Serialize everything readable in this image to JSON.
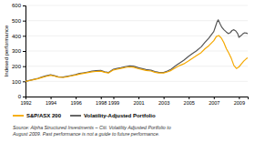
{
  "chart_data": {
    "type": "line",
    "ylabel": "Indexed performance",
    "xlim": [
      1992,
      2009.7
    ],
    "xticks": [
      1992,
      1994,
      1996,
      1998,
      1999,
      2001,
      2003,
      2005,
      2007,
      2009
    ],
    "ylim": [
      0,
      600
    ],
    "yticks": [
      0,
      100,
      200,
      300,
      400,
      500,
      600
    ],
    "grid": true,
    "legend": "bottom",
    "annotations": [
      "Source: Alpha Structured Investments – Citi. Volatility Adjusted Portfolio to\nAugust 2009. Past performance is not a guide to future performance."
    ],
    "series": [
      {
        "name": "S&P/ASX 200",
        "color": "#f5a800",
        "x": [
          1992.0,
          1992.3,
          1992.6,
          1993.0,
          1993.3,
          1993.6,
          1994.0,
          1994.3,
          1994.6,
          1995.0,
          1995.3,
          1995.6,
          1996.0,
          1996.3,
          1996.6,
          1997.0,
          1997.3,
          1997.6,
          1998.0,
          1998.3,
          1998.6,
          1999.0,
          1999.3,
          1999.6,
          2000.0,
          2000.3,
          2000.6,
          2001.0,
          2001.3,
          2001.6,
          2002.0,
          2002.3,
          2002.6,
          2003.0,
          2003.3,
          2003.6,
          2004.0,
          2004.3,
          2004.6,
          2005.0,
          2005.3,
          2005.6,
          2006.0,
          2006.3,
          2006.6,
          2007.0,
          2007.2,
          2007.4,
          2007.6,
          2007.8,
          2008.0,
          2008.2,
          2008.4,
          2008.6,
          2008.8,
          2009.0,
          2009.2,
          2009.4,
          2009.6,
          2009.7
        ],
        "values": [
          100,
          105,
          110,
          118,
          125,
          132,
          140,
          135,
          128,
          126,
          130,
          135,
          142,
          148,
          152,
          158,
          163,
          165,
          167,
          160,
          155,
          175,
          180,
          185,
          192,
          195,
          193,
          183,
          178,
          172,
          168,
          160,
          155,
          155,
          162,
          172,
          192,
          205,
          215,
          235,
          252,
          268,
          290,
          315,
          335,
          368,
          395,
          402,
          385,
          355,
          315,
          285,
          250,
          205,
          185,
          195,
          215,
          235,
          250,
          255
        ]
      },
      {
        "name": "Volatility-Adjusted Portfolio",
        "color": "#555555",
        "x": [
          1992.0,
          1992.3,
          1992.6,
          1993.0,
          1993.3,
          1993.6,
          1994.0,
          1994.3,
          1994.6,
          1995.0,
          1995.3,
          1995.6,
          1996.0,
          1996.3,
          1996.6,
          1997.0,
          1997.3,
          1997.6,
          1998.0,
          1998.3,
          1998.6,
          1999.0,
          1999.3,
          1999.6,
          2000.0,
          2000.3,
          2000.6,
          2001.0,
          2001.3,
          2001.6,
          2002.0,
          2002.3,
          2002.6,
          2003.0,
          2003.3,
          2003.6,
          2004.0,
          2004.3,
          2004.6,
          2005.0,
          2005.3,
          2005.6,
          2006.0,
          2006.3,
          2006.6,
          2007.0,
          2007.15,
          2007.25,
          2007.35,
          2007.5,
          2007.65,
          2007.8,
          2008.0,
          2008.15,
          2008.3,
          2008.45,
          2008.6,
          2008.75,
          2008.9,
          2009.0,
          2009.15,
          2009.3,
          2009.45,
          2009.6,
          2009.7
        ],
        "values": [
          100,
          106,
          112,
          120,
          128,
          136,
          143,
          137,
          130,
          128,
          133,
          138,
          145,
          152,
          156,
          162,
          167,
          170,
          172,
          163,
          158,
          180,
          185,
          190,
          198,
          202,
          200,
          190,
          184,
          178,
          173,
          165,
          160,
          158,
          168,
          180,
          205,
          222,
          238,
          265,
          283,
          300,
          328,
          358,
          385,
          428,
          465,
          490,
          505,
          478,
          455,
          440,
          425,
          415,
          420,
          435,
          440,
          432,
          415,
          390,
          400,
          412,
          420,
          418,
          415
        ]
      }
    ]
  }
}
